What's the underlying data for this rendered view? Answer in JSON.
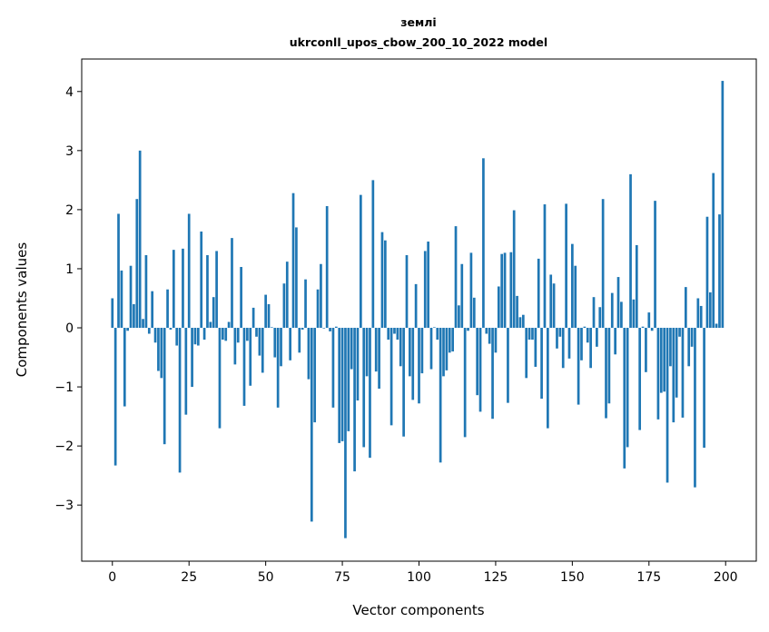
{
  "chart_data": {
    "type": "bar",
    "title_line1": "землі",
    "title_line2": "ukrconll_upos_cbow_200_10_2022 model",
    "xlabel": "Vector components",
    "ylabel": "Components values",
    "xlim": [
      -10,
      210
    ],
    "ylim": [
      -3.95,
      4.55
    ],
    "xticks": [
      0,
      25,
      50,
      75,
      100,
      125,
      150,
      175,
      200
    ],
    "xtick_labels": [
      "0",
      "25",
      "50",
      "75",
      "100",
      "125",
      "150",
      "175",
      "200"
    ],
    "yticks": [
      -3,
      -2,
      -1,
      0,
      1,
      2,
      3,
      4
    ],
    "ytick_labels": [
      "−3",
      "−2",
      "−1",
      "0",
      "1",
      "2",
      "3",
      "4"
    ],
    "grid": false,
    "color": "#1f77b4",
    "values": [
      0.5,
      -2.33,
      1.93,
      0.97,
      -1.33,
      -0.05,
      1.05,
      0.4,
      2.18,
      3.0,
      0.15,
      1.23,
      -0.1,
      0.62,
      -0.25,
      -0.73,
      -0.85,
      -1.97,
      0.65,
      -0.03,
      1.32,
      -0.3,
      -2.45,
      1.34,
      -1.47,
      1.93,
      -1.0,
      -0.28,
      -0.3,
      1.63,
      -0.2,
      1.23,
      0.1,
      0.52,
      1.3,
      -1.7,
      -0.2,
      -0.22,
      0.1,
      1.52,
      -0.62,
      -0.25,
      1.03,
      -1.32,
      -0.22,
      -0.98,
      0.34,
      -0.15,
      -0.47,
      -0.76,
      0.56,
      0.4,
      0.01,
      -0.5,
      -1.35,
      -0.65,
      0.75,
      1.12,
      -0.55,
      2.28,
      1.7,
      -0.42,
      -0.03,
      0.82,
      -0.87,
      -3.28,
      -1.6,
      0.65,
      1.08,
      -0.01,
      2.06,
      -0.06,
      -1.35,
      0.02,
      -1.95,
      -1.92,
      -3.56,
      -1.75,
      -0.7,
      -2.43,
      -1.23,
      2.25,
      -2.02,
      -0.82,
      -2.2,
      2.5,
      -0.74,
      -1.03,
      1.62,
      1.48,
      -0.2,
      -1.65,
      -0.1,
      -0.2,
      -0.65,
      -1.84,
      1.23,
      -0.82,
      -1.22,
      0.74,
      -1.28,
      -0.77,
      1.3,
      1.46,
      -0.7,
      0.01,
      -0.2,
      -2.28,
      -0.82,
      -0.72,
      -0.42,
      -0.4,
      1.72,
      0.38,
      1.08,
      -1.85,
      -0.05,
      1.27,
      0.51,
      -1.14,
      -1.42,
      2.87,
      -0.1,
      -0.27,
      -1.54,
      -0.42,
      0.7,
      1.25,
      1.27,
      -1.27,
      1.28,
      1.99,
      0.54,
      0.18,
      0.22,
      -0.85,
      -0.2,
      -0.2,
      -0.66,
      1.17,
      -1.2,
      2.09,
      -1.7,
      0.9,
      0.75,
      -0.35,
      -0.15,
      -0.68,
      2.1,
      -0.52,
      1.42,
      1.05,
      -1.3,
      -0.55,
      0.02,
      -0.25,
      -0.68,
      0.52,
      -0.32,
      0.35,
      2.18,
      -1.53,
      -1.28,
      0.59,
      -0.45,
      0.86,
      0.44,
      -2.38,
      -2.02,
      2.6,
      0.48,
      1.4,
      -1.73,
      0.02,
      -0.75,
      0.26,
      -0.05,
      2.15,
      -1.55,
      -1.1,
      -1.08,
      -2.62,
      -0.65,
      -1.6,
      -1.18,
      -0.15,
      -1.52,
      0.69,
      -0.65,
      -0.32,
      -2.7,
      0.5,
      0.37,
      -2.03,
      1.88,
      0.6,
      2.62,
      0.07,
      1.92,
      4.18
    ]
  }
}
